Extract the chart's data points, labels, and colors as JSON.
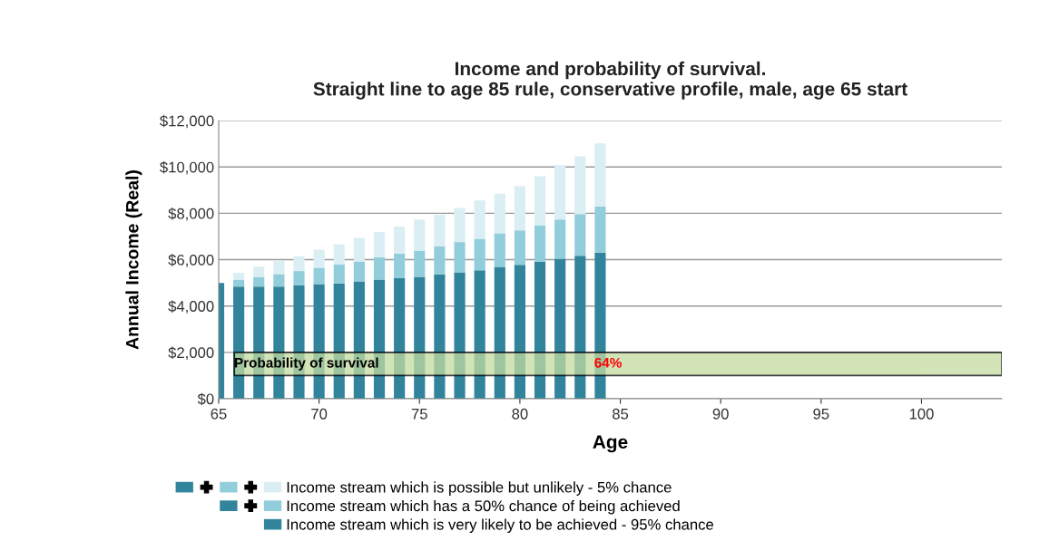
{
  "chart_data": {
    "type": "bar",
    "stacked": true,
    "title": "Income and probability of survival.\nStraight line to age 85 rule, conservative profile, male, age 65 start",
    "xlabel": "Age",
    "ylabel": "Annual Income (Real)",
    "x": [
      65,
      66,
      67,
      68,
      69,
      70,
      71,
      72,
      73,
      74,
      75,
      76,
      77,
      78,
      79,
      80,
      81,
      82,
      83,
      84
    ],
    "series": [
      {
        "name": "Income stream which is very likely to be achieved - 95% chance",
        "color": "#31849b",
        "values": [
          5000,
          4840,
          4840,
          4840,
          4890,
          4950,
          4980,
          5060,
          5140,
          5200,
          5260,
          5370,
          5450,
          5540,
          5690,
          5780,
          5910,
          6040,
          6170,
          6300
        ]
      },
      {
        "name": "Income stream which has a 50% chance of being achieved",
        "color": "#92cddc",
        "values": [
          0,
          300,
          400,
          540,
          620,
          700,
          810,
          860,
          960,
          1060,
          1130,
          1200,
          1310,
          1360,
          1450,
          1480,
          1570,
          1690,
          1800,
          2000
        ]
      },
      {
        "name": "Income stream which is possible but unlikely - 5% chance",
        "color": "#daeef3",
        "values": [
          0,
          290,
          460,
          570,
          640,
          780,
          870,
          1020,
          1100,
          1170,
          1340,
          1370,
          1470,
          1650,
          1710,
          1910,
          2120,
          2350,
          2490,
          2720
        ]
      }
    ],
    "xlim": [
      65,
      104
    ],
    "xticks": [
      65,
      70,
      75,
      80,
      85,
      90,
      95,
      100
    ],
    "ylim": [
      0,
      12000
    ],
    "yticks": [
      {
        "value": 0,
        "label": "$0"
      },
      {
        "value": 2000,
        "label": "$2,000"
      },
      {
        "value": 4000,
        "label": "$4,000"
      },
      {
        "value": 6000,
        "label": "$6,000"
      },
      {
        "value": 8000,
        "label": "$8,000"
      },
      {
        "value": 10000,
        "label": "$10,000"
      },
      {
        "value": 12000,
        "label": "$12,000"
      }
    ],
    "grid": "y",
    "legend": "bottom",
    "bands": [
      {
        "axis": "y",
        "from": 1000,
        "to": 2000,
        "label": "Probability of survival",
        "color": "#c4dba0"
      }
    ],
    "annotations": [
      "64%"
    ]
  }
}
